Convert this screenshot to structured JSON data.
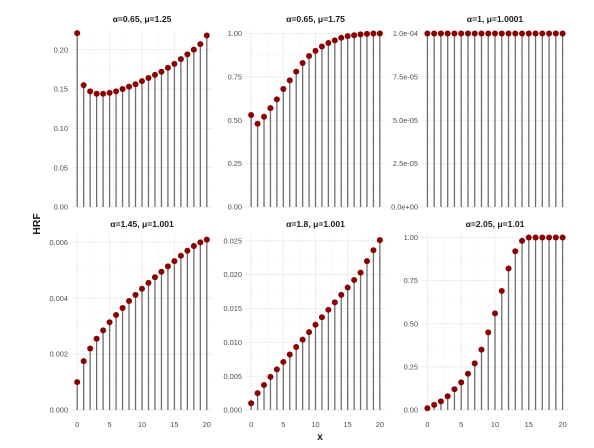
{
  "figure": {
    "xlabel": "x",
    "ylabel": "HRF"
  },
  "colors": {
    "point": "#8b0000",
    "stem": "#6e6e6e",
    "grid": "#ebebeb",
    "text": "#4d4d4d"
  },
  "x_ticks": [
    0,
    5,
    10,
    15,
    20
  ],
  "chart_data": [
    {
      "type": "scatter",
      "style": "lollipop",
      "title": "α=0.65, μ=1.25",
      "x": [
        0,
        1,
        2,
        3,
        4,
        5,
        6,
        7,
        8,
        9,
        10,
        11,
        12,
        13,
        14,
        15,
        16,
        17,
        18,
        19,
        20
      ],
      "values": [
        0.221,
        0.155,
        0.147,
        0.144,
        0.144,
        0.145,
        0.147,
        0.15,
        0.153,
        0.156,
        0.16,
        0.164,
        0.168,
        0.172,
        0.177,
        0.182,
        0.188,
        0.194,
        0.2,
        0.207,
        0.218
      ],
      "xlim": [
        -0.8,
        20.8
      ],
      "ylim": [
        0,
        0.225
      ],
      "yticks": [
        0,
        0.05,
        0.1,
        0.15,
        0.2
      ],
      "ytick_labels": [
        "0.00",
        "0.05",
        "0.10",
        "0.15",
        "0.20"
      ],
      "grid": true
    },
    {
      "type": "scatter",
      "style": "lollipop",
      "title": "α=0.65, μ=1.75",
      "x": [
        0,
        1,
        2,
        3,
        4,
        5,
        6,
        7,
        8,
        9,
        10,
        11,
        12,
        13,
        14,
        15,
        16,
        17,
        18,
        19,
        20
      ],
      "values": [
        0.53,
        0.48,
        0.52,
        0.57,
        0.62,
        0.68,
        0.73,
        0.78,
        0.83,
        0.87,
        0.9,
        0.925,
        0.945,
        0.96,
        0.975,
        0.985,
        0.99,
        0.995,
        0.998,
        1.0,
        1.0
      ],
      "xlim": [
        -0.8,
        20.8
      ],
      "ylim": [
        0,
        1.02
      ],
      "yticks": [
        0,
        0.25,
        0.5,
        0.75,
        1.0
      ],
      "ytick_labels": [
        "0.00",
        "0.25",
        "0.50",
        "0.75",
        "1.00"
      ],
      "grid": true
    },
    {
      "type": "scatter",
      "style": "lollipop",
      "title": "α=1, μ=1.0001",
      "x": [
        0,
        1,
        2,
        3,
        4,
        5,
        6,
        7,
        8,
        9,
        10,
        11,
        12,
        13,
        14,
        15,
        16,
        17,
        18,
        19,
        20
      ],
      "values": [
        0.0001,
        0.0001,
        0.0001,
        0.0001,
        0.0001,
        0.0001,
        0.0001,
        0.0001,
        0.0001,
        0.0001,
        0.0001,
        0.0001,
        0.0001,
        0.0001,
        0.0001,
        0.0001,
        0.0001,
        0.0001,
        0.0001,
        0.0001,
        0.0001
      ],
      "xlim": [
        -0.8,
        20.8
      ],
      "ylim": [
        0,
        0.000102
      ],
      "yticks": [
        0,
        2.5e-05,
        5e-05,
        7.5e-05,
        0.0001
      ],
      "ytick_labels": [
        "0.0e+00",
        "2.5e-05",
        "5.0e-05",
        "7.5e-05",
        "1.0e-04"
      ],
      "grid": true
    },
    {
      "type": "scatter",
      "style": "lollipop",
      "title": "α=1.45, μ=1.001",
      "x": [
        0,
        1,
        2,
        3,
        4,
        5,
        6,
        7,
        8,
        9,
        10,
        11,
        12,
        13,
        14,
        15,
        16,
        17,
        18,
        19,
        20
      ],
      "values": [
        0.001,
        0.00175,
        0.0022,
        0.00255,
        0.00285,
        0.00314,
        0.0034,
        0.00365,
        0.0039,
        0.00412,
        0.00434,
        0.00455,
        0.00475,
        0.00495,
        0.00514,
        0.00533,
        0.00552,
        0.0057,
        0.00587,
        0.006,
        0.0061
      ],
      "xlim": [
        -0.8,
        20.8
      ],
      "ylim": [
        0,
        0.0063
      ],
      "yticks": [
        0,
        0.002,
        0.004,
        0.006
      ],
      "ytick_labels": [
        "0.000",
        "0.002",
        "0.004",
        "0.006"
      ],
      "grid": true
    },
    {
      "type": "scatter",
      "style": "lollipop",
      "title": "α=1.8, μ=1.001",
      "x": [
        0,
        1,
        2,
        3,
        4,
        5,
        6,
        7,
        8,
        9,
        10,
        11,
        12,
        13,
        14,
        15,
        16,
        17,
        18,
        19,
        20
      ],
      "values": [
        0.001,
        0.0025,
        0.0037,
        0.0049,
        0.006,
        0.0071,
        0.0082,
        0.0093,
        0.0104,
        0.0115,
        0.0126,
        0.0137,
        0.0148,
        0.0159,
        0.017,
        0.0181,
        0.0192,
        0.0203,
        0.022,
        0.0236,
        0.0251
      ],
      "xlim": [
        -0.8,
        20.8
      ],
      "ylim": [
        0,
        0.026
      ],
      "yticks": [
        0,
        0.005,
        0.01,
        0.015,
        0.02,
        0.025
      ],
      "ytick_labels": [
        "0.000",
        "0.005",
        "0.010",
        "0.015",
        "0.020",
        "0.025"
      ],
      "grid": true
    },
    {
      "type": "scatter",
      "style": "lollipop",
      "title": "α=2.05, μ=1.01",
      "x": [
        0,
        1,
        2,
        3,
        4,
        5,
        6,
        7,
        8,
        9,
        10,
        11,
        12,
        13,
        14,
        15,
        16,
        17,
        18,
        19,
        20
      ],
      "values": [
        0.01,
        0.03,
        0.05,
        0.08,
        0.12,
        0.16,
        0.21,
        0.27,
        0.35,
        0.45,
        0.56,
        0.69,
        0.82,
        0.92,
        0.98,
        1.0,
        1.0,
        1.0,
        1.0,
        1.0,
        1.0
      ],
      "xlim": [
        -0.8,
        20.8
      ],
      "ylim": [
        0,
        1.02
      ],
      "yticks": [
        0,
        0.25,
        0.5,
        0.75,
        1.0
      ],
      "ytick_labels": [
        "0.00",
        "0.25",
        "0.50",
        "0.75",
        "1.00"
      ],
      "grid": true
    }
  ]
}
